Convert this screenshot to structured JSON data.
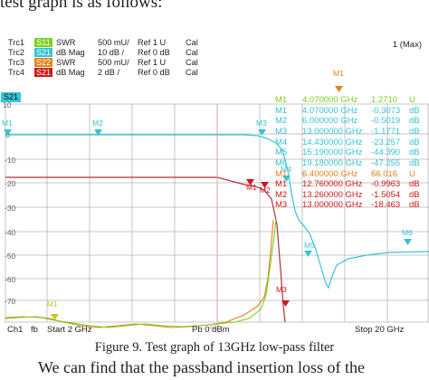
{
  "heading_text": "test graph is as follows:",
  "window_label": "1 (Max)",
  "traces": [
    {
      "name": "Trc1",
      "param": "S11",
      "format": "SWR",
      "scale": "500 mU/",
      "ref": "Ref 1 U",
      "cal": "Cal",
      "badge_color": "#7ad11e"
    },
    {
      "name": "Trc2",
      "param": "S21",
      "format": "dB Mag",
      "scale": "10 dB /",
      "ref": "Ref 0 dB",
      "cal": "Cal",
      "badge_color": "#36c4d4"
    },
    {
      "name": "Trc3",
      "param": "S22",
      "format": "SWR",
      "scale": "500 mU/",
      "ref": "Ref 1 U",
      "cal": "Cal",
      "badge_color": "#e0821e"
    },
    {
      "name": "Trc4",
      "param": "S21",
      "format": "dB Mag",
      "scale": "2 dB /",
      "ref": "Ref 0 dB",
      "cal": "Cal",
      "badge_color": "#d01818"
    }
  ],
  "active_trace": "S21",
  "y_ticks": [
    "10",
    "0",
    "-10",
    "-20",
    "-30",
    "-40",
    "-50",
    "-60",
    "-70"
  ],
  "markers_table_1": [
    {
      "id": "M1",
      "freq": "4.070000 GHz",
      "value": "1.2710",
      "unit": "U"
    },
    {
      "id": "M1",
      "freq": "4.070000 GHz",
      "value": "-0.3073",
      "unit": "dB"
    },
    {
      "id": "M2",
      "freq": "6.000000 GHz",
      "value": "-0.5019",
      "unit": "dB"
    },
    {
      "id": "M3",
      "freq": "13.000000 GHz",
      "value": "-1.1771",
      "unit": "dB"
    },
    {
      "id": "M4",
      "freq": "14.430000 GHz",
      "value": "-23.257",
      "unit": "dB"
    },
    {
      "id": "M5",
      "freq": "15.190000 GHz",
      "value": "-44.390",
      "unit": "dB"
    },
    {
      "id": "M6",
      "freq": "19.180000 GHz",
      "value": "-47.255",
      "unit": "dB"
    },
    {
      "id": "M1",
      "freq": "6.400000 GHz",
      "value": "66.016",
      "unit": "U"
    }
  ],
  "markers_table_2": [
    {
      "id": "M1",
      "freq": "12.760000 GHz",
      "value": "-0.9963",
      "unit": "dB"
    },
    {
      "id": "M2",
      "freq": "13.260000 GHz",
      "value": "-1.5054",
      "unit": "dB"
    },
    {
      "id": "M3",
      "freq": "13.000000 GHz",
      "value": "-18.463",
      "unit": "dB"
    }
  ],
  "plot_markers": {
    "m1_top": "M1",
    "m1_left": "M1",
    "m2": "M2",
    "m3": "M3",
    "m4": "M4",
    "m5": "M5",
    "m6": "M6",
    "m1_red": "M1",
    "m2_red": "M2",
    "m3_red": "M3",
    "m1_yellow": "M1",
    "r1": "R1"
  },
  "bottom": {
    "channel": "Ch1",
    "fb": "fb",
    "start": "Start  2 GHz",
    "power": "Pb  0 dBm",
    "stop": "Stop  20 GHz"
  },
  "caption": "Figure 9. Test graph of 13GHz low-pass filter",
  "body_text": "We can find that the passband insertion loss of the"
}
